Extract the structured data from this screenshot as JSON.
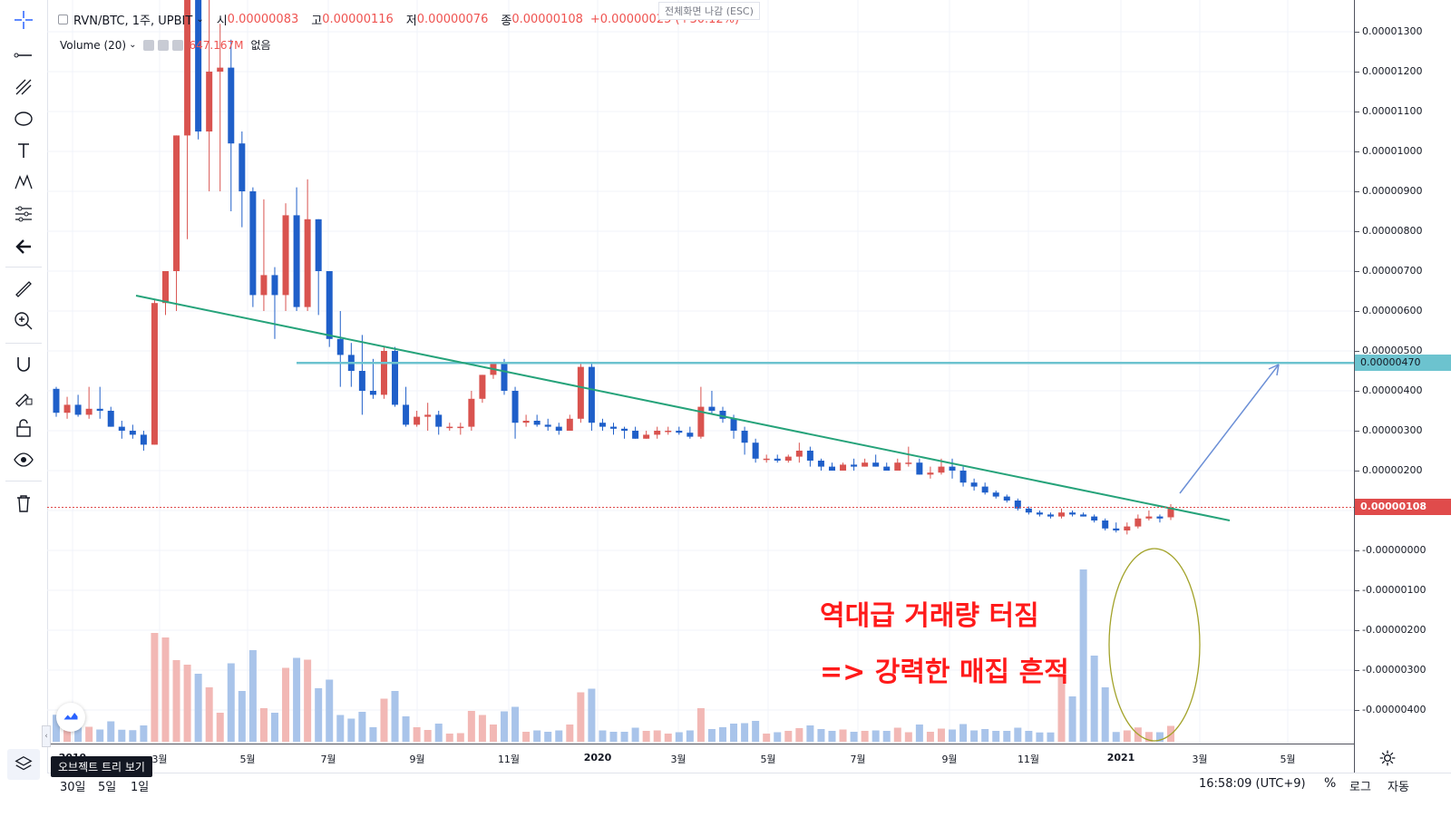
{
  "legend": {
    "symbol": "RVN/BTC, 1주, UPBIT",
    "open_label": "시",
    "open": "0.00000083",
    "high_label": "고",
    "high": "0.00000116",
    "low_label": "저",
    "low": "0.00000076",
    "close_label": "종",
    "close": "0.00000108",
    "change": "+0.00000025 (+30.12%)",
    "volume_label": "Volume (20)",
    "volume_value": "647.167M",
    "volume_extra": "없음"
  },
  "fullscreen_tip": "전체화면 나감 (ESC)",
  "price_axis": {
    "ticks": [
      "0.00001300",
      "0.00001200",
      "0.00001100",
      "0.00001000",
      "0.00000900",
      "0.00000800",
      "0.00000700",
      "0.00000600",
      "0.00000500",
      "0.00000400",
      "0.00000300",
      "0.00000200",
      "0.00000100",
      "-0.00000000",
      "-0.00000100",
      "-0.00000200",
      "-0.00000300",
      "-0.00000400"
    ],
    "horizontal_line_label": "0.00000470",
    "last_price_label": "0.00000108"
  },
  "time_axis": {
    "ticks": [
      {
        "label": "2019",
        "bold": true
      },
      {
        "label": "3월",
        "bold": false
      },
      {
        "label": "5월",
        "bold": false
      },
      {
        "label": "7월",
        "bold": false
      },
      {
        "label": "9월",
        "bold": false
      },
      {
        "label": "11월",
        "bold": false
      },
      {
        "label": "2020",
        "bold": true
      },
      {
        "label": "3월",
        "bold": false
      },
      {
        "label": "5월",
        "bold": false
      },
      {
        "label": "7월",
        "bold": false
      },
      {
        "label": "9월",
        "bold": false
      },
      {
        "label": "11월",
        "bold": false
      },
      {
        "label": "2021",
        "bold": true
      },
      {
        "label": "3월",
        "bold": false
      },
      {
        "label": "5월",
        "bold": false
      }
    ]
  },
  "annotations": {
    "line1": "역대급 거래량 터짐",
    "line2": "=> 강력한 매집 흔적"
  },
  "bottom_bar": {
    "ranges": [
      "30일",
      "5일",
      "1일"
    ],
    "clock": "16:58:09 (UTC+9)",
    "percent": "%",
    "log": "로그",
    "auto": "자동"
  },
  "object_tree_tip": "오브젝트 트리 보기",
  "colors": {
    "up": "#d9534f",
    "down": "#1f5fc9",
    "vol_up": "#f2b8b5",
    "vol_down": "#a9c4ea",
    "trendline": "#26a37a",
    "hline": "#6cc3cf",
    "arrow": "#6b8fd6",
    "ellipse": "#a3a32a",
    "annotation": "#ff1a1a"
  },
  "chart_data": {
    "type": "candlestick",
    "unit": "1e-8 BTC",
    "description_series": "weekly OHLC and volume, approximate",
    "candles": [
      [
        405,
        410,
        335,
        345
      ],
      [
        345,
        385,
        330,
        365
      ],
      [
        365,
        390,
        335,
        340
      ],
      [
        340,
        410,
        330,
        355
      ],
      [
        355,
        410,
        330,
        350
      ],
      [
        350,
        360,
        310,
        310
      ],
      [
        310,
        325,
        280,
        300
      ],
      [
        300,
        315,
        280,
        290
      ],
      [
        290,
        300,
        250,
        265
      ],
      [
        265,
        630,
        265,
        620
      ],
      [
        620,
        700,
        590,
        700
      ],
      [
        700,
        1040,
        600,
        1040
      ],
      [
        1040,
        1400,
        780,
        1400
      ],
      [
        1400,
        1600,
        1030,
        1050
      ],
      [
        1050,
        1600,
        900,
        1200
      ],
      [
        1200,
        1320,
        900,
        1210
      ],
      [
        1210,
        1280,
        850,
        1020
      ],
      [
        1020,
        1050,
        810,
        900
      ],
      [
        900,
        910,
        610,
        640
      ],
      [
        640,
        880,
        600,
        690
      ],
      [
        690,
        710,
        530,
        640
      ],
      [
        640,
        870,
        600,
        840
      ],
      [
        840,
        910,
        600,
        610
      ],
      [
        610,
        930,
        600,
        830
      ],
      [
        830,
        830,
        590,
        700
      ],
      [
        700,
        700,
        510,
        530
      ],
      [
        530,
        600,
        410,
        490
      ],
      [
        490,
        520,
        410,
        450
      ],
      [
        450,
        540,
        340,
        400
      ],
      [
        400,
        480,
        380,
        390
      ],
      [
        390,
        510,
        380,
        500
      ],
      [
        500,
        510,
        360,
        365
      ],
      [
        365,
        410,
        310,
        315
      ],
      [
        315,
        350,
        310,
        335
      ],
      [
        335,
        370,
        300,
        340
      ],
      [
        340,
        350,
        290,
        310
      ],
      [
        310,
        320,
        300,
        310
      ],
      [
        310,
        320,
        290,
        310
      ],
      [
        310,
        400,
        300,
        380
      ],
      [
        380,
        440,
        370,
        440
      ],
      [
        440,
        470,
        430,
        470
      ],
      [
        470,
        480,
        390,
        400
      ],
      [
        400,
        410,
        280,
        320
      ],
      [
        320,
        340,
        310,
        325
      ],
      [
        325,
        340,
        310,
        315
      ],
      [
        315,
        330,
        300,
        310
      ],
      [
        310,
        320,
        290,
        300
      ],
      [
        300,
        340,
        300,
        330
      ],
      [
        330,
        470,
        320,
        460
      ],
      [
        460,
        470,
        300,
        320
      ],
      [
        320,
        330,
        300,
        310
      ],
      [
        310,
        320,
        290,
        305
      ],
      [
        305,
        310,
        280,
        300
      ],
      [
        300,
        310,
        280,
        280
      ],
      [
        280,
        300,
        280,
        290
      ],
      [
        290,
        310,
        280,
        300
      ],
      [
        300,
        310,
        290,
        300
      ],
      [
        300,
        310,
        290,
        295
      ],
      [
        295,
        310,
        280,
        285
      ],
      [
        285,
        410,
        280,
        360
      ],
      [
        360,
        400,
        340,
        350
      ],
      [
        350,
        360,
        320,
        330
      ],
      [
        330,
        340,
        280,
        300
      ],
      [
        300,
        310,
        240,
        270
      ],
      [
        270,
        280,
        220,
        230
      ],
      [
        230,
        240,
        220,
        230
      ],
      [
        230,
        240,
        220,
        225
      ],
      [
        225,
        240,
        220,
        235
      ],
      [
        235,
        270,
        220,
        250
      ],
      [
        250,
        260,
        210,
        225
      ],
      [
        225,
        230,
        200,
        210
      ],
      [
        210,
        220,
        200,
        200
      ],
      [
        200,
        220,
        200,
        215
      ],
      [
        215,
        230,
        200,
        210
      ],
      [
        210,
        230,
        210,
        220
      ],
      [
        220,
        240,
        210,
        210
      ],
      [
        210,
        220,
        200,
        200
      ],
      [
        200,
        230,
        200,
        220
      ],
      [
        220,
        260,
        210,
        220
      ],
      [
        220,
        230,
        190,
        190
      ],
      [
        190,
        210,
        180,
        195
      ],
      [
        195,
        230,
        190,
        210
      ],
      [
        210,
        230,
        180,
        200
      ],
      [
        200,
        210,
        160,
        170
      ],
      [
        170,
        180,
        150,
        160
      ],
      [
        160,
        170,
        140,
        145
      ],
      [
        145,
        150,
        130,
        135
      ],
      [
        135,
        140,
        120,
        125
      ],
      [
        125,
        130,
        100,
        105
      ],
      [
        105,
        110,
        90,
        95
      ],
      [
        95,
        100,
        85,
        90
      ],
      [
        90,
        95,
        80,
        85
      ],
      [
        85,
        105,
        80,
        95
      ],
      [
        95,
        100,
        85,
        90
      ],
      [
        90,
        95,
        85,
        85
      ],
      [
        85,
        90,
        70,
        75
      ],
      [
        75,
        80,
        50,
        55
      ],
      [
        55,
        70,
        45,
        50
      ],
      [
        50,
        70,
        40,
        60
      ],
      [
        60,
        90,
        55,
        80
      ],
      [
        80,
        100,
        75,
        85
      ],
      [
        85,
        90,
        70,
        80
      ],
      [
        83,
        116,
        76,
        108
      ]
    ]
  }
}
